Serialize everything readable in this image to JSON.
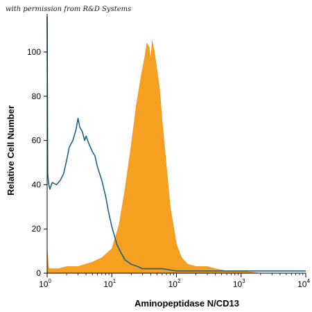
{
  "credit": "with permission from R&D Systems",
  "chart_data": {
    "type": "area",
    "title": "",
    "xlabel": "Aminopeptidase N/CD13",
    "ylabel": "Relative Cell Number",
    "x_scale": "log",
    "xlim": [
      1,
      10000
    ],
    "ylim": [
      0,
      110
    ],
    "x_ticks": [
      {
        "value": 1,
        "label": "10",
        "exp": "0"
      },
      {
        "value": 10,
        "label": "10",
        "exp": "1"
      },
      {
        "value": 100,
        "label": "10",
        "exp": "2"
      },
      {
        "value": 1000,
        "label": "10",
        "exp": "3"
      },
      {
        "value": 10000,
        "label": "10",
        "exp": "4"
      }
    ],
    "y_ticks": [
      0,
      20,
      40,
      60,
      80,
      100
    ],
    "grid": false,
    "series": [
      {
        "style": "filled",
        "color": "#f5a020",
        "x": [
          1.0,
          1.05,
          1.08,
          1.2,
          1.5,
          2.0,
          3.0,
          5.0,
          7.0,
          10.0,
          13.0,
          16.0,
          20.0,
          24.0,
          28.0,
          32.0,
          35.0,
          38.0,
          40.0,
          42.0,
          45.0,
          50.0,
          55.0,
          60.0,
          70.0,
          80.0,
          100.0,
          120.0,
          150.0,
          200.0,
          300.0,
          400.0,
          600.0,
          1000.0,
          2000.0,
          5000.0,
          10000.0
        ],
        "y": [
          11,
          3,
          2,
          2,
          2,
          3,
          3,
          5,
          7,
          11,
          22,
          38,
          58,
          76,
          88,
          97,
          104,
          102,
          96,
          105,
          101,
          92,
          83,
          69,
          48,
          30,
          13,
          7,
          4,
          3,
          3,
          2,
          1,
          1,
          0,
          0,
          0
        ]
      },
      {
        "style": "line",
        "color": "#1f5f8b",
        "x": [
          1.0,
          1.02,
          1.06,
          1.1,
          1.2,
          1.4,
          1.6,
          1.8,
          2.0,
          2.2,
          2.5,
          2.8,
          3.0,
          3.2,
          3.5,
          3.8,
          4.0,
          4.5,
          5.0,
          5.5,
          6.0,
          7.0,
          8.0,
          9.0,
          10.0,
          12.0,
          14.0,
          16.0,
          20.0,
          25.0,
          30.0,
          40.0,
          60.0,
          100.0,
          200.0,
          400.0,
          1000.0,
          3000.0,
          10000.0
        ],
        "y": [
          116,
          45,
          40,
          38,
          41,
          40,
          42,
          45,
          51,
          57,
          60,
          65,
          70,
          66,
          64,
          60,
          62,
          58,
          55,
          53,
          48,
          42,
          35,
          27,
          21,
          13,
          9,
          6,
          4,
          3,
          2,
          2,
          2,
          1,
          1,
          1,
          1,
          1,
          1
        ]
      }
    ]
  }
}
